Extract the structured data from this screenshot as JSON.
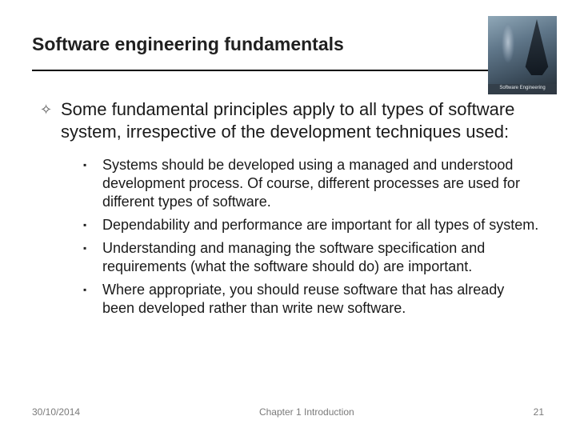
{
  "title": "Software engineering fundamentals",
  "image_caption": "Software Engineering",
  "main_bullet": "Some fundamental principles apply to all types of software system, irrespective of the development techniques used:",
  "sub_bullets": [
    "Systems should be developed using a managed and understood development process. Of course, different processes are used for different types of software.",
    "Dependability and performance are important for all types of system.",
    "Understanding and managing the software specification and requirements (what the software should do) are important.",
    "Where appropriate, you should reuse software that has already been developed rather than write new software."
  ],
  "footer": {
    "date": "30/10/2014",
    "chapter": "Chapter 1 Introduction",
    "page": "21"
  },
  "colors": {
    "text": "#1a1a1a",
    "muted": "#7a7a7a",
    "rule": "#040404",
    "background": "#ffffff"
  }
}
